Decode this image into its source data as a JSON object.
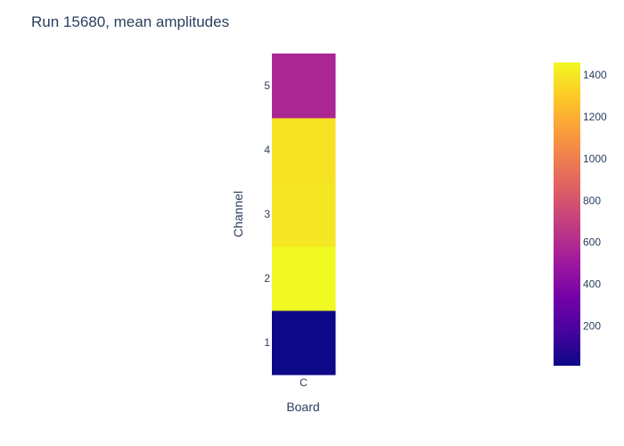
{
  "chart_data": {
    "type": "heatmap",
    "title": "Run 15680, mean amplitudes",
    "xlabel": "Board",
    "ylabel": "Channel",
    "x": [
      "C"
    ],
    "y": [
      "1",
      "2",
      "3",
      "4",
      "5"
    ],
    "z": [
      [
        10
      ],
      [
        1460
      ],
      [
        1400
      ],
      [
        1380
      ],
      [
        570
      ]
    ],
    "zlim": [
      10,
      1460
    ],
    "colorbar": {
      "ticks": [
        200,
        400,
        600,
        800,
        1000,
        1200,
        1400
      ],
      "colorscale": [
        "#0d0887",
        "#46039f",
        "#7201a8",
        "#9c179e",
        "#bd3786",
        "#d8576b",
        "#ed7953",
        "#fb9f3a",
        "#fdca26",
        "#f0f921"
      ]
    }
  }
}
